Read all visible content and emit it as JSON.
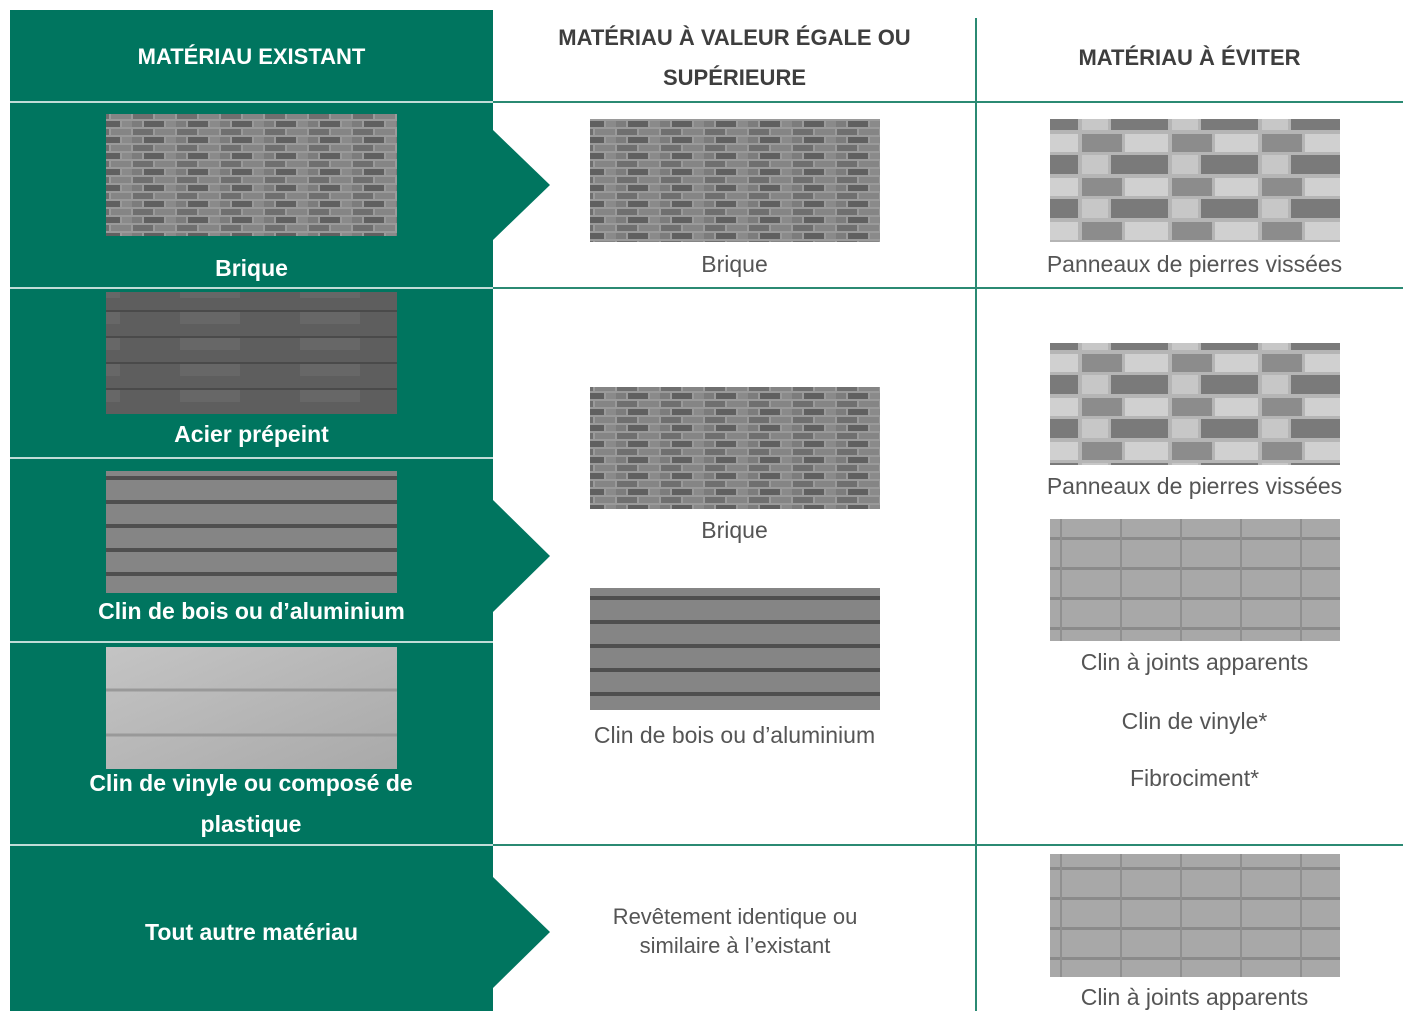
{
  "table": {
    "headers": [
      "MATÉRIAU EXISTANT",
      "MATÉRIAU À VALEUR ÉGALE OU SUPÉRIEURE",
      "MATÉRIAU À ÉVITER"
    ],
    "groups": [
      {
        "existing": [
          "Brique"
        ],
        "equivalent": [
          "Brique"
        ],
        "avoid": [
          "Panneaux de pierres vissées"
        ]
      },
      {
        "existing": [
          "Acier prépeint",
          "Clin de bois ou d’aluminium",
          "Clin de vinyle ou composé de plastique"
        ],
        "equivalent": [
          "Brique",
          "Clin de bois ou d’aluminium"
        ],
        "avoid": [
          "Panneaux de pierres vissées",
          "Clin à joints apparents",
          "Clin de vinyle*",
          "Fibrociment*"
        ]
      },
      {
        "existing": [
          "Tout autre matériau"
        ],
        "equivalent": [
          "Revêtement identique ou similaire à l’existant"
        ],
        "avoid": [
          "Clin à joints apparents"
        ]
      }
    ]
  }
}
